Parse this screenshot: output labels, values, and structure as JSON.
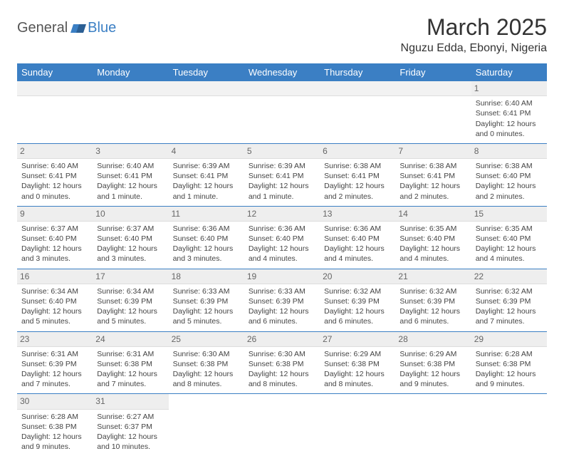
{
  "logo": {
    "part1": "General",
    "part2": "Blue"
  },
  "title": "March 2025",
  "subtitle": "Nguzu Edda, Ebonyi, Nigeria",
  "colors": {
    "header_bg": "#3b7fc4",
    "header_text": "#ffffff",
    "daynum_bg": "#eeeeee",
    "text": "#444444",
    "rule": "#3b7fc4"
  },
  "days_of_week": [
    "Sunday",
    "Monday",
    "Tuesday",
    "Wednesday",
    "Thursday",
    "Friday",
    "Saturday"
  ],
  "weeks": [
    [
      null,
      null,
      null,
      null,
      null,
      null,
      {
        "n": "1",
        "sr": "6:40 AM",
        "ss": "6:41 PM",
        "dl": "12 hours and 0 minutes."
      }
    ],
    [
      {
        "n": "2",
        "sr": "6:40 AM",
        "ss": "6:41 PM",
        "dl": "12 hours and 0 minutes."
      },
      {
        "n": "3",
        "sr": "6:40 AM",
        "ss": "6:41 PM",
        "dl": "12 hours and 1 minute."
      },
      {
        "n": "4",
        "sr": "6:39 AM",
        "ss": "6:41 PM",
        "dl": "12 hours and 1 minute."
      },
      {
        "n": "5",
        "sr": "6:39 AM",
        "ss": "6:41 PM",
        "dl": "12 hours and 1 minute."
      },
      {
        "n": "6",
        "sr": "6:38 AM",
        "ss": "6:41 PM",
        "dl": "12 hours and 2 minutes."
      },
      {
        "n": "7",
        "sr": "6:38 AM",
        "ss": "6:41 PM",
        "dl": "12 hours and 2 minutes."
      },
      {
        "n": "8",
        "sr": "6:38 AM",
        "ss": "6:40 PM",
        "dl": "12 hours and 2 minutes."
      }
    ],
    [
      {
        "n": "9",
        "sr": "6:37 AM",
        "ss": "6:40 PM",
        "dl": "12 hours and 3 minutes."
      },
      {
        "n": "10",
        "sr": "6:37 AM",
        "ss": "6:40 PM",
        "dl": "12 hours and 3 minutes."
      },
      {
        "n": "11",
        "sr": "6:36 AM",
        "ss": "6:40 PM",
        "dl": "12 hours and 3 minutes."
      },
      {
        "n": "12",
        "sr": "6:36 AM",
        "ss": "6:40 PM",
        "dl": "12 hours and 4 minutes."
      },
      {
        "n": "13",
        "sr": "6:36 AM",
        "ss": "6:40 PM",
        "dl": "12 hours and 4 minutes."
      },
      {
        "n": "14",
        "sr": "6:35 AM",
        "ss": "6:40 PM",
        "dl": "12 hours and 4 minutes."
      },
      {
        "n": "15",
        "sr": "6:35 AM",
        "ss": "6:40 PM",
        "dl": "12 hours and 4 minutes."
      }
    ],
    [
      {
        "n": "16",
        "sr": "6:34 AM",
        "ss": "6:40 PM",
        "dl": "12 hours and 5 minutes."
      },
      {
        "n": "17",
        "sr": "6:34 AM",
        "ss": "6:39 PM",
        "dl": "12 hours and 5 minutes."
      },
      {
        "n": "18",
        "sr": "6:33 AM",
        "ss": "6:39 PM",
        "dl": "12 hours and 5 minutes."
      },
      {
        "n": "19",
        "sr": "6:33 AM",
        "ss": "6:39 PM",
        "dl": "12 hours and 6 minutes."
      },
      {
        "n": "20",
        "sr": "6:32 AM",
        "ss": "6:39 PM",
        "dl": "12 hours and 6 minutes."
      },
      {
        "n": "21",
        "sr": "6:32 AM",
        "ss": "6:39 PM",
        "dl": "12 hours and 6 minutes."
      },
      {
        "n": "22",
        "sr": "6:32 AM",
        "ss": "6:39 PM",
        "dl": "12 hours and 7 minutes."
      }
    ],
    [
      {
        "n": "23",
        "sr": "6:31 AM",
        "ss": "6:39 PM",
        "dl": "12 hours and 7 minutes."
      },
      {
        "n": "24",
        "sr": "6:31 AM",
        "ss": "6:38 PM",
        "dl": "12 hours and 7 minutes."
      },
      {
        "n": "25",
        "sr": "6:30 AM",
        "ss": "6:38 PM",
        "dl": "12 hours and 8 minutes."
      },
      {
        "n": "26",
        "sr": "6:30 AM",
        "ss": "6:38 PM",
        "dl": "12 hours and 8 minutes."
      },
      {
        "n": "27",
        "sr": "6:29 AM",
        "ss": "6:38 PM",
        "dl": "12 hours and 8 minutes."
      },
      {
        "n": "28",
        "sr": "6:29 AM",
        "ss": "6:38 PM",
        "dl": "12 hours and 9 minutes."
      },
      {
        "n": "29",
        "sr": "6:28 AM",
        "ss": "6:38 PM",
        "dl": "12 hours and 9 minutes."
      }
    ],
    [
      {
        "n": "30",
        "sr": "6:28 AM",
        "ss": "6:38 PM",
        "dl": "12 hours and 9 minutes."
      },
      {
        "n": "31",
        "sr": "6:27 AM",
        "ss": "6:37 PM",
        "dl": "12 hours and 10 minutes."
      },
      null,
      null,
      null,
      null,
      null
    ]
  ],
  "labels": {
    "sunrise": "Sunrise:",
    "sunset": "Sunset:",
    "daylight": "Daylight:"
  }
}
